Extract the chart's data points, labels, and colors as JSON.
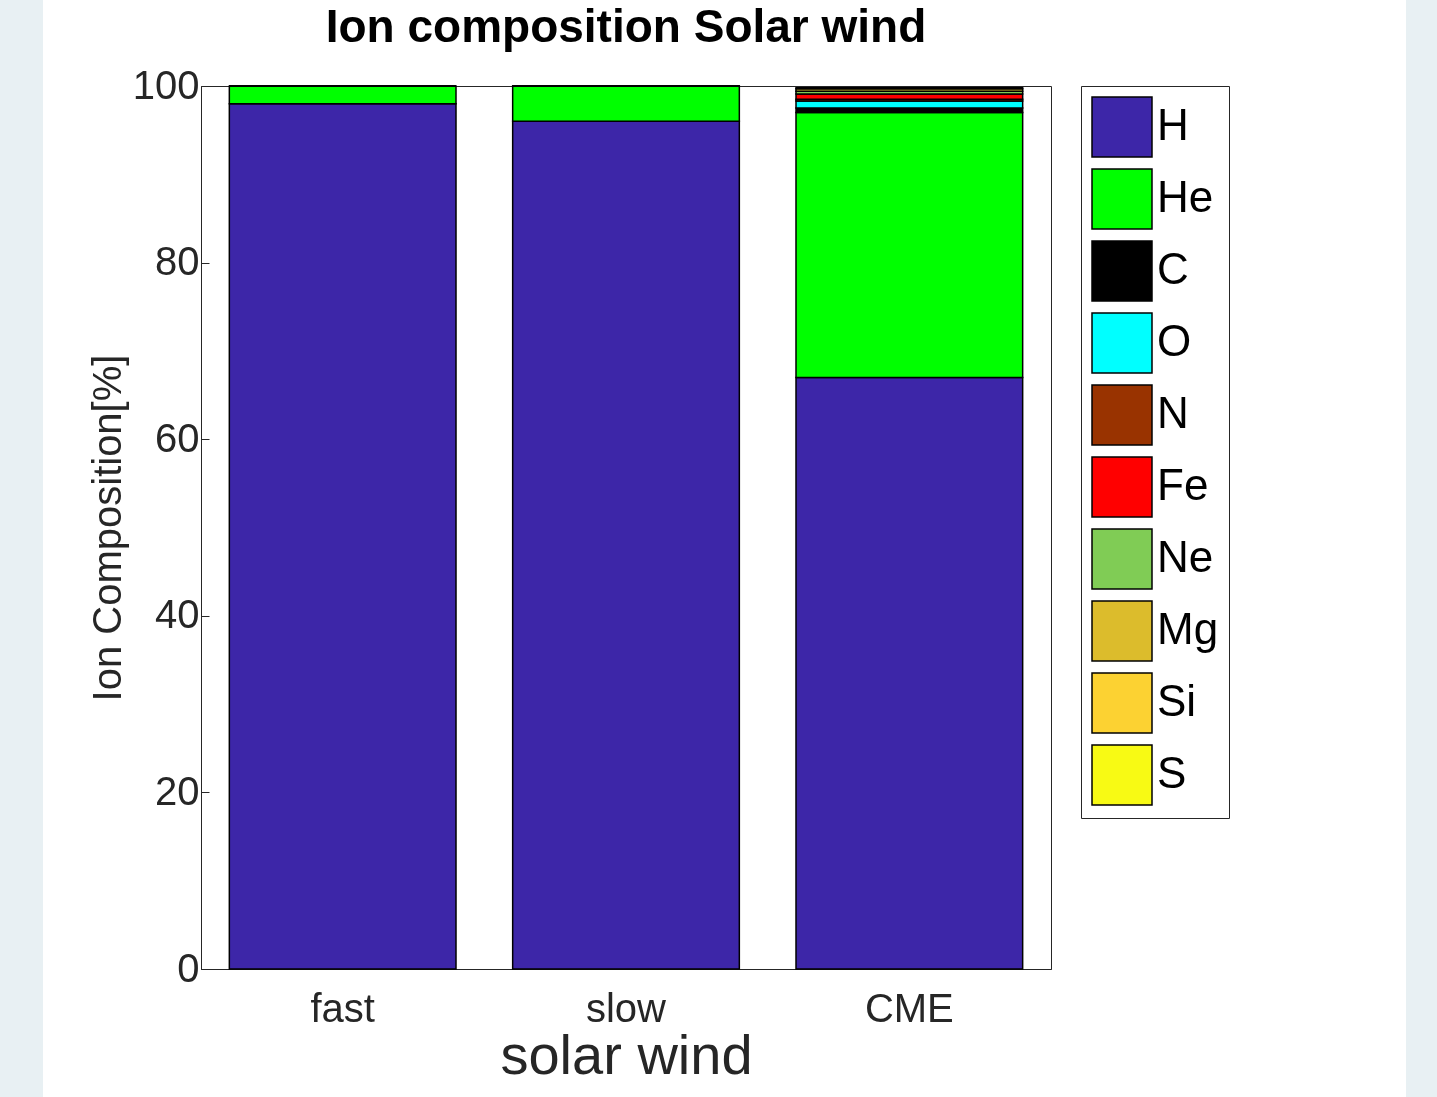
{
  "chart_data": {
    "type": "bar",
    "title": "Ion composition Solar wind",
    "xlabel": "solar wind",
    "ylabel": "Ion Composition[%]",
    "categories": [
      "fast",
      "slow",
      "CME"
    ],
    "stacked": true,
    "ylim": [
      0,
      100
    ],
    "yticks": [
      0,
      20,
      40,
      60,
      80,
      100
    ],
    "grid": false,
    "legend": "right",
    "series": [
      {
        "name": "H",
        "color": "#3d26a8",
        "values": [
          98,
          96,
          67
        ]
      },
      {
        "name": "He",
        "color": "#00ff00",
        "values": [
          2,
          4,
          30
        ]
      },
      {
        "name": "C",
        "color": "#000000",
        "values": [
          0,
          0,
          0.5
        ]
      },
      {
        "name": "O",
        "color": "#00ffff",
        "values": [
          0,
          0,
          0.8
        ]
      },
      {
        "name": "N",
        "color": "#993300",
        "values": [
          0,
          0,
          0.2
        ]
      },
      {
        "name": "Fe",
        "color": "#ff0000",
        "values": [
          0,
          0,
          0.6
        ]
      },
      {
        "name": "Ne",
        "color": "#80cc55",
        "values": [
          0,
          0,
          0.3
        ]
      },
      {
        "name": "Mg",
        "color": "#dcbc2c",
        "values": [
          0,
          0,
          0.3
        ]
      },
      {
        "name": "Si",
        "color": "#fcd232",
        "values": [
          0,
          0,
          null
        ]
      },
      {
        "name": "S",
        "color": "#f8fa14",
        "values": [
          0,
          0,
          0.1
        ]
      }
    ]
  }
}
